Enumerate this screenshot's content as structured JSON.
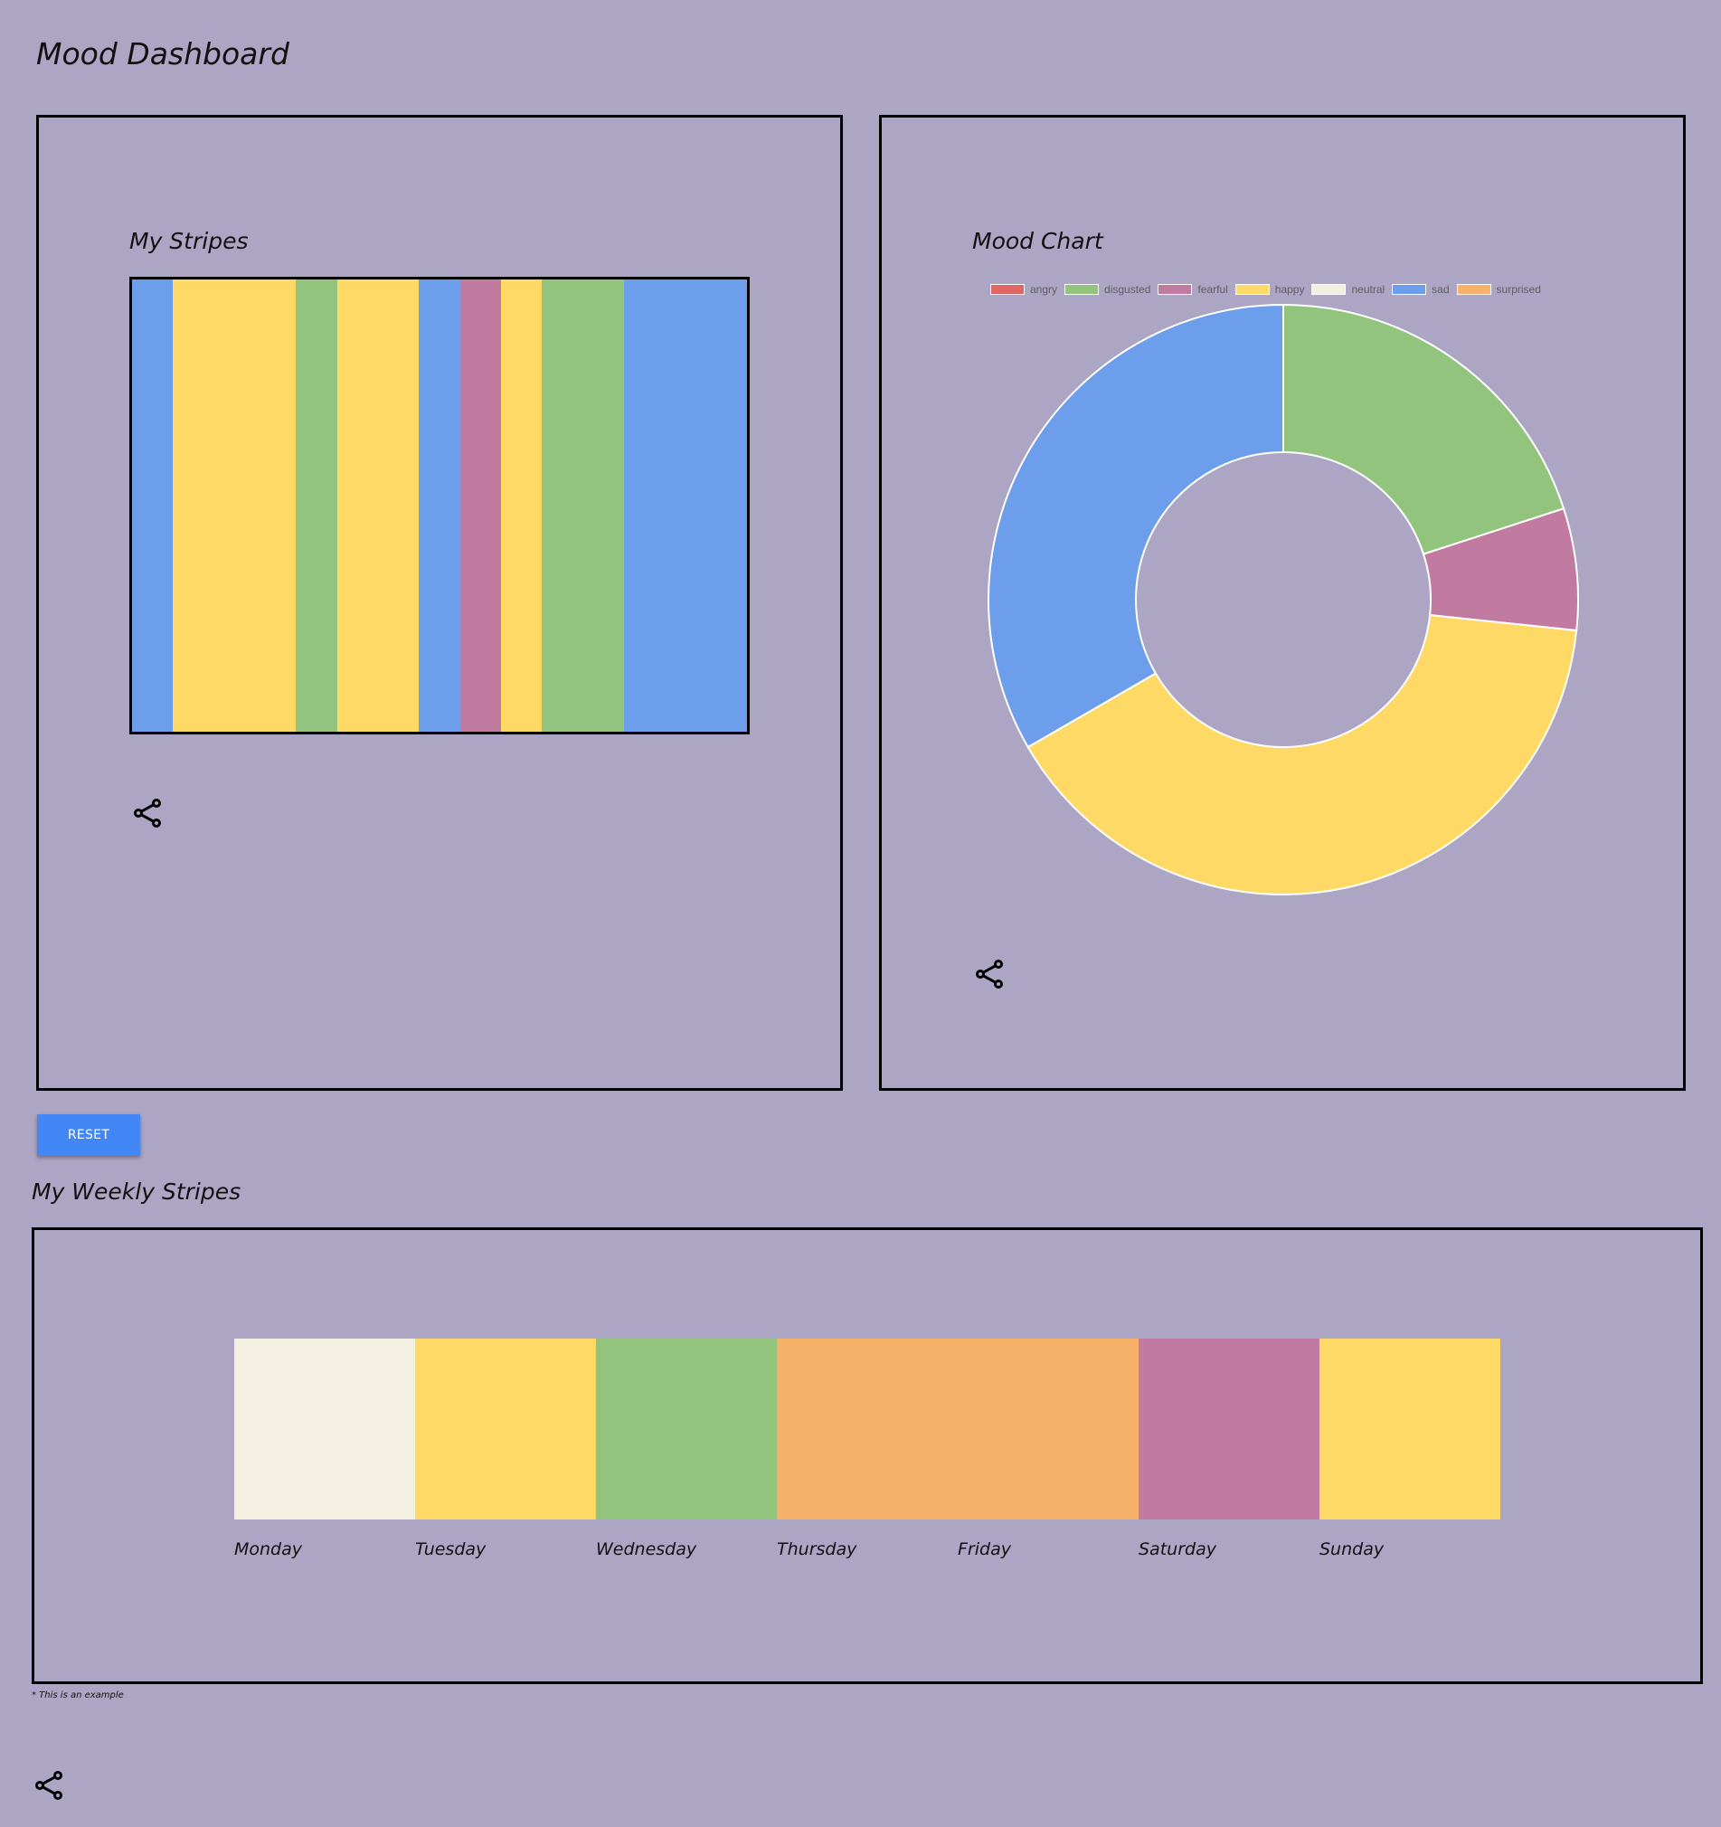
{
  "page": {
    "title": "Mood Dashboard",
    "background": "#aca5c3"
  },
  "stripes_panel": {
    "title": "My Stripes",
    "stripes": [
      {
        "mood": "sad",
        "color": "#6d9eeb",
        "weight": 1
      },
      {
        "mood": "happy",
        "color": "#ffd966",
        "weight": 3
      },
      {
        "mood": "disgusted",
        "color": "#93c47d",
        "weight": 1
      },
      {
        "mood": "happy",
        "color": "#ffd966",
        "weight": 2
      },
      {
        "mood": "sad",
        "color": "#6d9eeb",
        "weight": 1
      },
      {
        "mood": "fearful",
        "color": "#c27ba0",
        "weight": 1
      },
      {
        "mood": "happy",
        "color": "#ffd966",
        "weight": 1
      },
      {
        "mood": "disgusted",
        "color": "#93c47d",
        "weight": 2
      },
      {
        "mood": "sad",
        "color": "#6d9eeb",
        "weight": 3
      }
    ],
    "share_icon": "share-icon"
  },
  "chart_panel": {
    "title": "Mood Chart",
    "share_icon": "share-icon"
  },
  "chart_data": {
    "type": "pie",
    "variant": "doughnut",
    "title": "Mood Chart",
    "legend_position": "top",
    "categories": [
      "angry",
      "disgusted",
      "fearful",
      "happy",
      "neutral",
      "sad",
      "surprised"
    ],
    "colors": [
      "#e06666",
      "#93c47d",
      "#c27ba0",
      "#ffd966",
      "#f4f0e1",
      "#6d9eeb",
      "#f6b26b"
    ],
    "values": [
      0,
      3,
      1,
      6,
      0,
      5,
      0
    ]
  },
  "reset_button": {
    "label": "RESET"
  },
  "weekly": {
    "title": "My Weekly Stripes",
    "days": [
      {
        "label": "Monday",
        "color": "#f4f0e1",
        "span": 1
      },
      {
        "label": "Tuesday",
        "color": "#ffd966",
        "span": 1
      },
      {
        "label": "Wednesday",
        "color": "#93c47d",
        "span": 1
      },
      {
        "label": "Thursday",
        "color": "#f6b26b",
        "span": 2,
        "second_label": "Friday"
      },
      {
        "label": "Saturday",
        "color": "#c27ba0",
        "span": 1
      },
      {
        "label": "Sunday",
        "color": "#ffd966",
        "span": 1
      }
    ],
    "note": "* This is an example"
  },
  "page_share_icon": "share-icon"
}
